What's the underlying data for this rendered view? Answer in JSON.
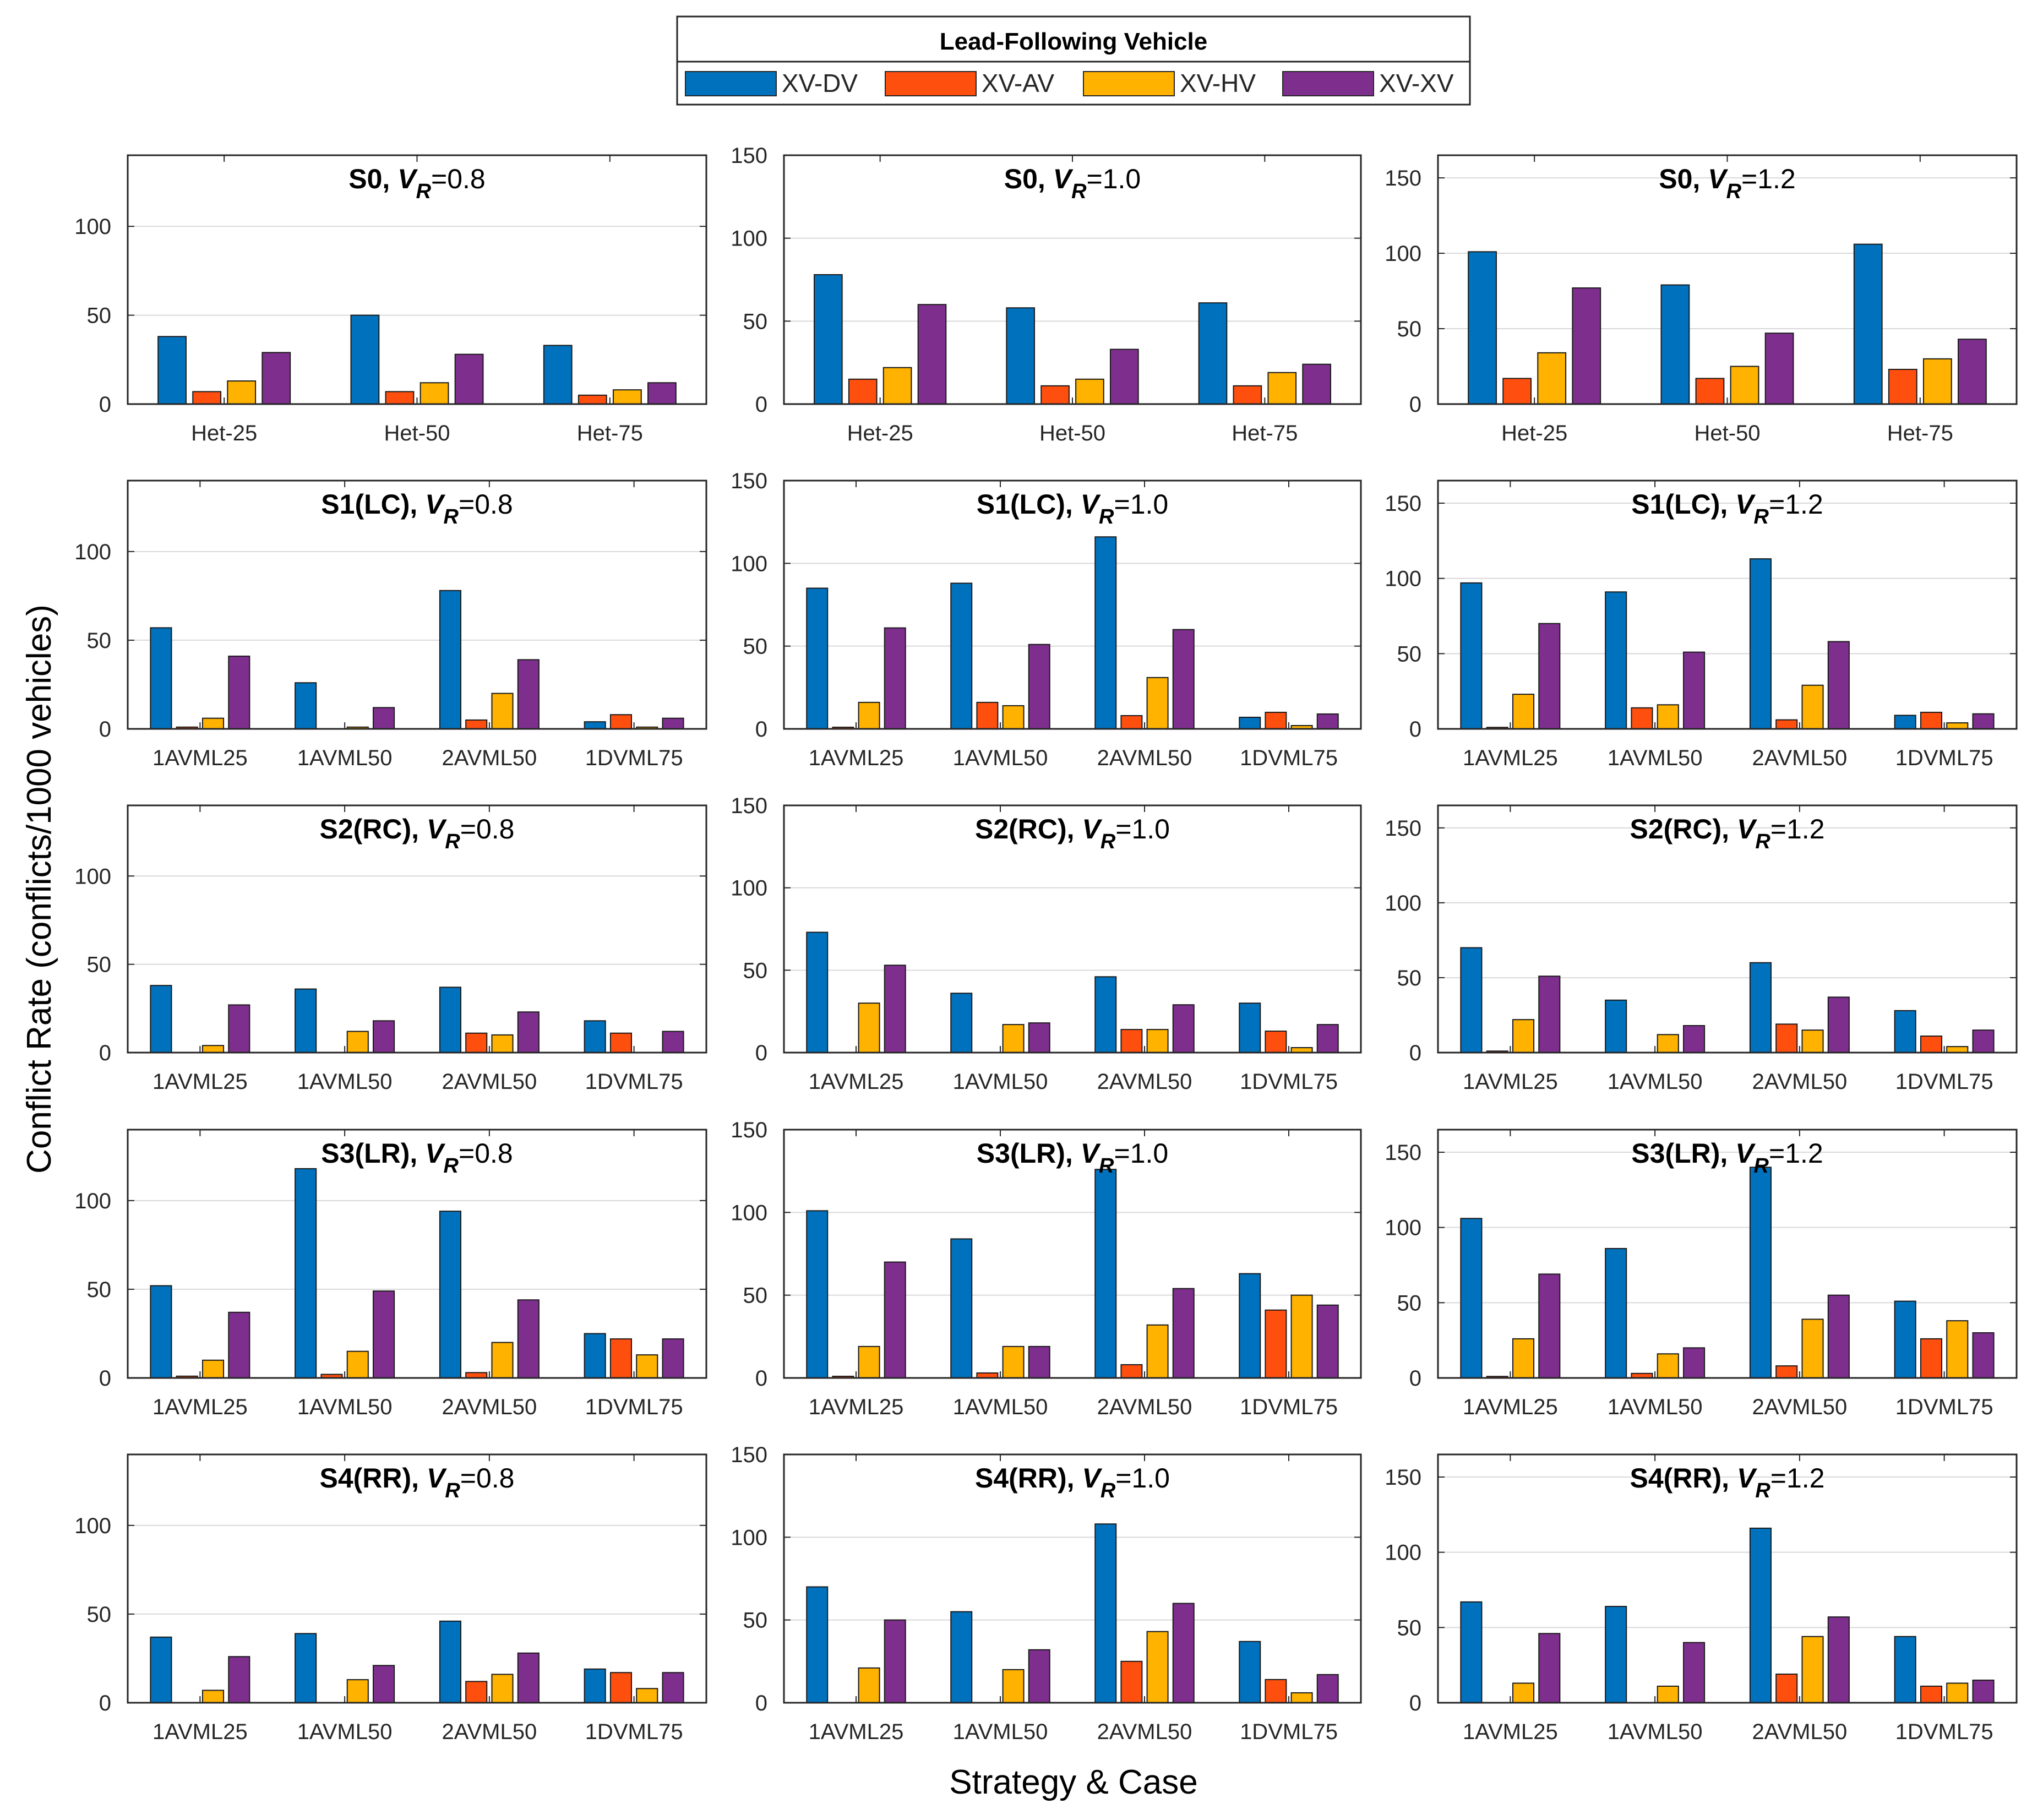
{
  "colors": {
    "XV-DV": "#0072BD",
    "XV-AV": "#FF4F0F",
    "XV-HV": "#FFB300",
    "XV-XV": "#7E2F8E",
    "grid": "#d9d9d9",
    "axis": "#262626"
  },
  "legend": {
    "title": "Lead-Following Vehicle",
    "items": [
      "XV-DV",
      "XV-AV",
      "XV-HV",
      "XV-XV"
    ]
  },
  "ylabel": "Conflict Rate (conflicts/1000 vehicles)",
  "xlabel": "Strategy & Case",
  "chart_data": [
    {
      "type": "bar",
      "scenario": "S0",
      "vr": "0.8",
      "ylim": [
        0,
        140
      ],
      "yticks": [
        0,
        50,
        100
      ],
      "categories": [
        "Het-25",
        "Het-50",
        "Het-75"
      ],
      "series": [
        {
          "name": "XV-DV",
          "values": [
            38,
            50,
            33
          ]
        },
        {
          "name": "XV-AV",
          "values": [
            7,
            7,
            5
          ]
        },
        {
          "name": "XV-HV",
          "values": [
            13,
            12,
            8
          ]
        },
        {
          "name": "XV-XV",
          "values": [
            29,
            28,
            12
          ]
        }
      ]
    },
    {
      "type": "bar",
      "scenario": "S0",
      "vr": "1.0",
      "ylim": [
        0,
        150
      ],
      "yticks": [
        0,
        50,
        100,
        150
      ],
      "categories": [
        "Het-25",
        "Het-50",
        "Het-75"
      ],
      "series": [
        {
          "name": "XV-DV",
          "values": [
            78,
            58,
            61
          ]
        },
        {
          "name": "XV-AV",
          "values": [
            15,
            11,
            11
          ]
        },
        {
          "name": "XV-HV",
          "values": [
            22,
            15,
            19
          ]
        },
        {
          "name": "XV-XV",
          "values": [
            60,
            33,
            24
          ]
        }
      ]
    },
    {
      "type": "bar",
      "scenario": "S0",
      "vr": "1.2",
      "ylim": [
        0,
        165
      ],
      "yticks": [
        0,
        50,
        100,
        150
      ],
      "categories": [
        "Het-25",
        "Het-50",
        "Het-75"
      ],
      "series": [
        {
          "name": "XV-DV",
          "values": [
            101,
            79,
            106
          ]
        },
        {
          "name": "XV-AV",
          "values": [
            17,
            17,
            23
          ]
        },
        {
          "name": "XV-HV",
          "values": [
            34,
            25,
            30
          ]
        },
        {
          "name": "XV-XV",
          "values": [
            77,
            47,
            43
          ]
        }
      ]
    },
    {
      "type": "bar",
      "scenario": "S1(LC)",
      "vr": "0.8",
      "ylim": [
        0,
        140
      ],
      "yticks": [
        0,
        50,
        100
      ],
      "categories": [
        "1AVML25",
        "1AVML50",
        "2AVML50",
        "1DVML75"
      ],
      "series": [
        {
          "name": "XV-DV",
          "values": [
            57,
            26,
            78,
            4
          ]
        },
        {
          "name": "XV-AV",
          "values": [
            1,
            0,
            5,
            8
          ]
        },
        {
          "name": "XV-HV",
          "values": [
            6,
            1,
            20,
            1
          ]
        },
        {
          "name": "XV-XV",
          "values": [
            41,
            12,
            39,
            6
          ]
        }
      ]
    },
    {
      "type": "bar",
      "scenario": "S1(LC)",
      "vr": "1.0",
      "ylim": [
        0,
        150
      ],
      "yticks": [
        0,
        50,
        100,
        150
      ],
      "categories": [
        "1AVML25",
        "1AVML50",
        "2AVML50",
        "1DVML75"
      ],
      "series": [
        {
          "name": "XV-DV",
          "values": [
            85,
            88,
            116,
            7
          ]
        },
        {
          "name": "XV-AV",
          "values": [
            1,
            16,
            8,
            10
          ]
        },
        {
          "name": "XV-HV",
          "values": [
            16,
            14,
            31,
            2
          ]
        },
        {
          "name": "XV-XV",
          "values": [
            61,
            51,
            60,
            9
          ]
        }
      ]
    },
    {
      "type": "bar",
      "scenario": "S1(LC)",
      "vr": "1.2",
      "ylim": [
        0,
        165
      ],
      "yticks": [
        0,
        50,
        100,
        150
      ],
      "categories": [
        "1AVML25",
        "1AVML50",
        "2AVML50",
        "1DVML75"
      ],
      "series": [
        {
          "name": "XV-DV",
          "values": [
            97,
            91,
            113,
            9
          ]
        },
        {
          "name": "XV-AV",
          "values": [
            1,
            14,
            6,
            11
          ]
        },
        {
          "name": "XV-HV",
          "values": [
            23,
            16,
            29,
            4
          ]
        },
        {
          "name": "XV-XV",
          "values": [
            70,
            51,
            58,
            10
          ]
        }
      ]
    },
    {
      "type": "bar",
      "scenario": "S2(RC)",
      "vr": "0.8",
      "ylim": [
        0,
        140
      ],
      "yticks": [
        0,
        50,
        100
      ],
      "categories": [
        "1AVML25",
        "1AVML50",
        "2AVML50",
        "1DVML75"
      ],
      "series": [
        {
          "name": "XV-DV",
          "values": [
            38,
            36,
            37,
            18
          ]
        },
        {
          "name": "XV-AV",
          "values": [
            0,
            0,
            11,
            11
          ]
        },
        {
          "name": "XV-HV",
          "values": [
            4,
            12,
            10,
            0
          ]
        },
        {
          "name": "XV-XV",
          "values": [
            27,
            18,
            23,
            12
          ]
        }
      ]
    },
    {
      "type": "bar",
      "scenario": "S2(RC)",
      "vr": "1.0",
      "ylim": [
        0,
        150
      ],
      "yticks": [
        0,
        50,
        100,
        150
      ],
      "categories": [
        "1AVML25",
        "1AVML50",
        "2AVML50",
        "1DVML75"
      ],
      "series": [
        {
          "name": "XV-DV",
          "values": [
            73,
            36,
            46,
            30
          ]
        },
        {
          "name": "XV-AV",
          "values": [
            0,
            0,
            14,
            13
          ]
        },
        {
          "name": "XV-HV",
          "values": [
            30,
            17,
            14,
            3
          ]
        },
        {
          "name": "XV-XV",
          "values": [
            53,
            18,
            29,
            17
          ]
        }
      ]
    },
    {
      "type": "bar",
      "scenario": "S2(RC)",
      "vr": "1.2",
      "ylim": [
        0,
        165
      ],
      "yticks": [
        0,
        50,
        100,
        150
      ],
      "categories": [
        "1AVML25",
        "1AVML50",
        "2AVML50",
        "1DVML75"
      ],
      "series": [
        {
          "name": "XV-DV",
          "values": [
            70,
            35,
            60,
            28
          ]
        },
        {
          "name": "XV-AV",
          "values": [
            1,
            0,
            19,
            11
          ]
        },
        {
          "name": "XV-HV",
          "values": [
            22,
            12,
            15,
            4
          ]
        },
        {
          "name": "XV-XV",
          "values": [
            51,
            18,
            37,
            15
          ]
        }
      ]
    },
    {
      "type": "bar",
      "scenario": "S3(LR)",
      "vr": "0.8",
      "ylim": [
        0,
        140
      ],
      "yticks": [
        0,
        50,
        100
      ],
      "categories": [
        "1AVML25",
        "1AVML50",
        "2AVML50",
        "1DVML75"
      ],
      "series": [
        {
          "name": "XV-DV",
          "values": [
            52,
            118,
            94,
            25
          ]
        },
        {
          "name": "XV-AV",
          "values": [
            1,
            2,
            3,
            22
          ]
        },
        {
          "name": "XV-HV",
          "values": [
            10,
            15,
            20,
            13
          ]
        },
        {
          "name": "XV-XV",
          "values": [
            37,
            49,
            44,
            22
          ]
        }
      ]
    },
    {
      "type": "bar",
      "scenario": "S3(LR)",
      "vr": "1.0",
      "ylim": [
        0,
        150
      ],
      "yticks": [
        0,
        50,
        100,
        150
      ],
      "categories": [
        "1AVML25",
        "1AVML50",
        "2AVML50",
        "1DVML75"
      ],
      "series": [
        {
          "name": "XV-DV",
          "values": [
            101,
            84,
            126,
            63
          ]
        },
        {
          "name": "XV-AV",
          "values": [
            1,
            3,
            8,
            41
          ]
        },
        {
          "name": "XV-HV",
          "values": [
            19,
            19,
            32,
            50
          ]
        },
        {
          "name": "XV-XV",
          "values": [
            70,
            19,
            54,
            44
          ]
        }
      ]
    },
    {
      "type": "bar",
      "scenario": "S3(LR)",
      "vr": "1.2",
      "ylim": [
        0,
        165
      ],
      "yticks": [
        0,
        50,
        100,
        150
      ],
      "categories": [
        "1AVML25",
        "1AVML50",
        "2AVML50",
        "1DVML75"
      ],
      "series": [
        {
          "name": "XV-DV",
          "values": [
            106,
            86,
            140,
            51
          ]
        },
        {
          "name": "XV-AV",
          "values": [
            1,
            3,
            8,
            26
          ]
        },
        {
          "name": "XV-HV",
          "values": [
            26,
            16,
            39,
            38
          ]
        },
        {
          "name": "XV-XV",
          "values": [
            69,
            20,
            55,
            30
          ]
        }
      ]
    },
    {
      "type": "bar",
      "scenario": "S4(RR)",
      "vr": "0.8",
      "ylim": [
        0,
        140
      ],
      "yticks": [
        0,
        50,
        100
      ],
      "categories": [
        "1AVML25",
        "1AVML50",
        "2AVML50",
        "1DVML75"
      ],
      "series": [
        {
          "name": "XV-DV",
          "values": [
            37,
            39,
            46,
            19
          ]
        },
        {
          "name": "XV-AV",
          "values": [
            0,
            0,
            12,
            17
          ]
        },
        {
          "name": "XV-HV",
          "values": [
            7,
            13,
            16,
            8
          ]
        },
        {
          "name": "XV-XV",
          "values": [
            26,
            21,
            28,
            17
          ]
        }
      ]
    },
    {
      "type": "bar",
      "scenario": "S4(RR)",
      "vr": "1.0",
      "ylim": [
        0,
        150
      ],
      "yticks": [
        0,
        50,
        100,
        150
      ],
      "categories": [
        "1AVML25",
        "1AVML50",
        "2AVML50",
        "1DVML75"
      ],
      "series": [
        {
          "name": "XV-DV",
          "values": [
            70,
            55,
            108,
            37
          ]
        },
        {
          "name": "XV-AV",
          "values": [
            0,
            0,
            25,
            14
          ]
        },
        {
          "name": "XV-HV",
          "values": [
            21,
            20,
            43,
            6
          ]
        },
        {
          "name": "XV-XV",
          "values": [
            50,
            32,
            60,
            17
          ]
        }
      ]
    },
    {
      "type": "bar",
      "scenario": "S4(RR)",
      "vr": "1.2",
      "ylim": [
        0,
        165
      ],
      "yticks": [
        0,
        50,
        100,
        150
      ],
      "categories": [
        "1AVML25",
        "1AVML50",
        "2AVML50",
        "1DVML75"
      ],
      "series": [
        {
          "name": "XV-DV",
          "values": [
            67,
            64,
            116,
            44
          ]
        },
        {
          "name": "XV-AV",
          "values": [
            0,
            0,
            19,
            11
          ]
        },
        {
          "name": "XV-HV",
          "values": [
            13,
            11,
            44,
            13
          ]
        },
        {
          "name": "XV-XV",
          "values": [
            46,
            40,
            57,
            15
          ]
        }
      ]
    }
  ]
}
